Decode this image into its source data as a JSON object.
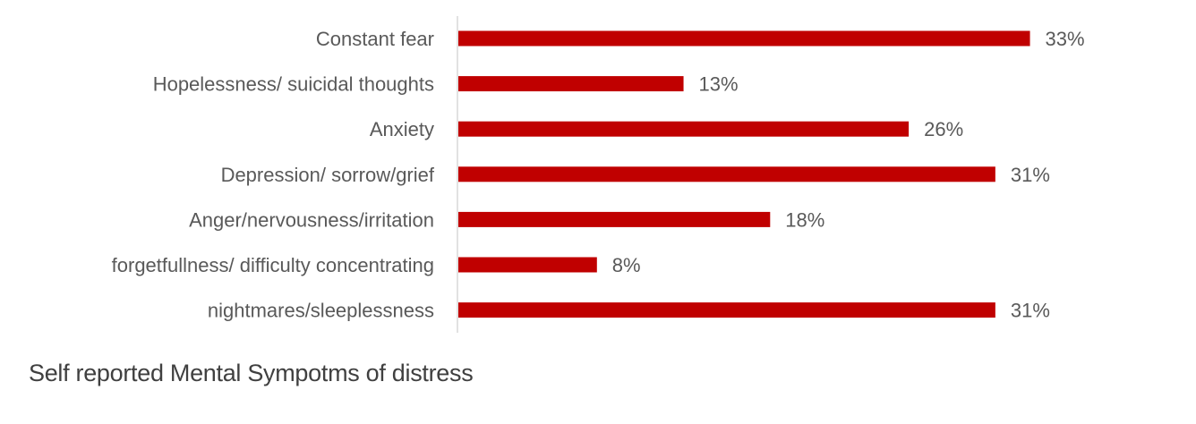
{
  "chart_data": {
    "type": "bar",
    "orientation": "horizontal",
    "title": "Self reported Mental Sympotms of distress",
    "categories": [
      "Constant fear",
      "Hopelessness/ suicidal thoughts",
      "Anxiety",
      "Depression/ sorrow/grief",
      "Anger/nervousness/irritation",
      "forgetfullness/ difficulty concentrating",
      "nightmares/sleeplessness"
    ],
    "values": [
      33,
      13,
      26,
      31,
      18,
      8,
      31
    ],
    "value_labels": [
      "33%",
      "13%",
      "26%",
      "31%",
      "18%",
      "8%",
      "31%"
    ],
    "unit": "%",
    "xlabel": "",
    "ylabel": "",
    "xlim": [
      0,
      35
    ],
    "grid": false,
    "legend": "none",
    "bar_color": "#C00000"
  }
}
